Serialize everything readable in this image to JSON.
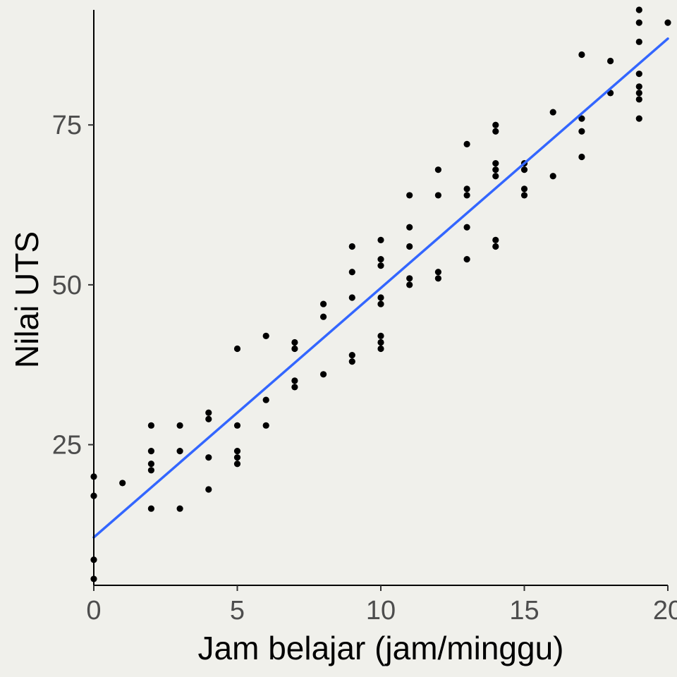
{
  "chart_data": {
    "type": "scatter",
    "title": "",
    "xlabel": "Jam belajar (jam/minggu)",
    "ylabel": "Nilai UTS",
    "xlim": [
      0,
      20
    ],
    "ylim": [
      3,
      93
    ],
    "x_ticks": [
      "0",
      "5",
      "10",
      "15",
      "20"
    ],
    "y_ticks": [
      "25",
      "50",
      "75"
    ],
    "grid": false,
    "legend": "none",
    "point_color": "#000000",
    "trend_line": {
      "color": "#3366ff",
      "x": [
        0,
        20
      ],
      "y": [
        10.5,
        88.5
      ]
    },
    "points": [
      [
        0,
        4
      ],
      [
        0,
        7
      ],
      [
        0,
        17
      ],
      [
        0,
        20
      ],
      [
        1,
        19
      ],
      [
        2,
        15
      ],
      [
        2,
        21
      ],
      [
        2,
        22
      ],
      [
        2,
        24
      ],
      [
        2,
        28
      ],
      [
        3,
        15
      ],
      [
        3,
        24
      ],
      [
        3,
        28
      ],
      [
        4,
        18
      ],
      [
        4,
        23
      ],
      [
        4,
        29
      ],
      [
        4,
        30
      ],
      [
        5,
        22
      ],
      [
        5,
        23
      ],
      [
        5,
        24
      ],
      [
        5,
        28
      ],
      [
        5,
        40
      ],
      [
        6,
        28
      ],
      [
        6,
        32
      ],
      [
        6,
        42
      ],
      [
        7,
        34
      ],
      [
        7,
        35
      ],
      [
        7,
        40
      ],
      [
        7,
        41
      ],
      [
        8,
        36
      ],
      [
        8,
        45
      ],
      [
        8,
        47
      ],
      [
        9,
        38
      ],
      [
        9,
        39
      ],
      [
        9,
        48
      ],
      [
        9,
        52
      ],
      [
        9,
        56
      ],
      [
        10,
        40
      ],
      [
        10,
        41
      ],
      [
        10,
        42
      ],
      [
        10,
        47
      ],
      [
        10,
        48
      ],
      [
        10,
        53
      ],
      [
        10,
        54
      ],
      [
        10,
        57
      ],
      [
        11,
        50
      ],
      [
        11,
        51
      ],
      [
        11,
        56
      ],
      [
        11,
        59
      ],
      [
        11,
        64
      ],
      [
        12,
        51
      ],
      [
        12,
        52
      ],
      [
        12,
        64
      ],
      [
        12,
        68
      ],
      [
        13,
        54
      ],
      [
        13,
        59
      ],
      [
        13,
        64
      ],
      [
        13,
        65
      ],
      [
        13,
        72
      ],
      [
        14,
        56
      ],
      [
        14,
        57
      ],
      [
        14,
        67
      ],
      [
        14,
        68
      ],
      [
        14,
        69
      ],
      [
        14,
        74
      ],
      [
        14,
        75
      ],
      [
        15,
        64
      ],
      [
        15,
        65
      ],
      [
        15,
        68
      ],
      [
        15,
        69
      ],
      [
        16,
        67
      ],
      [
        16,
        77
      ],
      [
        17,
        70
      ],
      [
        17,
        74
      ],
      [
        17,
        76
      ],
      [
        17,
        86
      ],
      [
        18,
        80
      ],
      [
        18,
        85
      ],
      [
        19,
        76
      ],
      [
        19,
        79
      ],
      [
        19,
        80
      ],
      [
        19,
        81
      ],
      [
        19,
        83
      ],
      [
        19,
        88
      ],
      [
        19,
        91
      ],
      [
        19,
        93
      ],
      [
        20,
        91
      ]
    ]
  }
}
